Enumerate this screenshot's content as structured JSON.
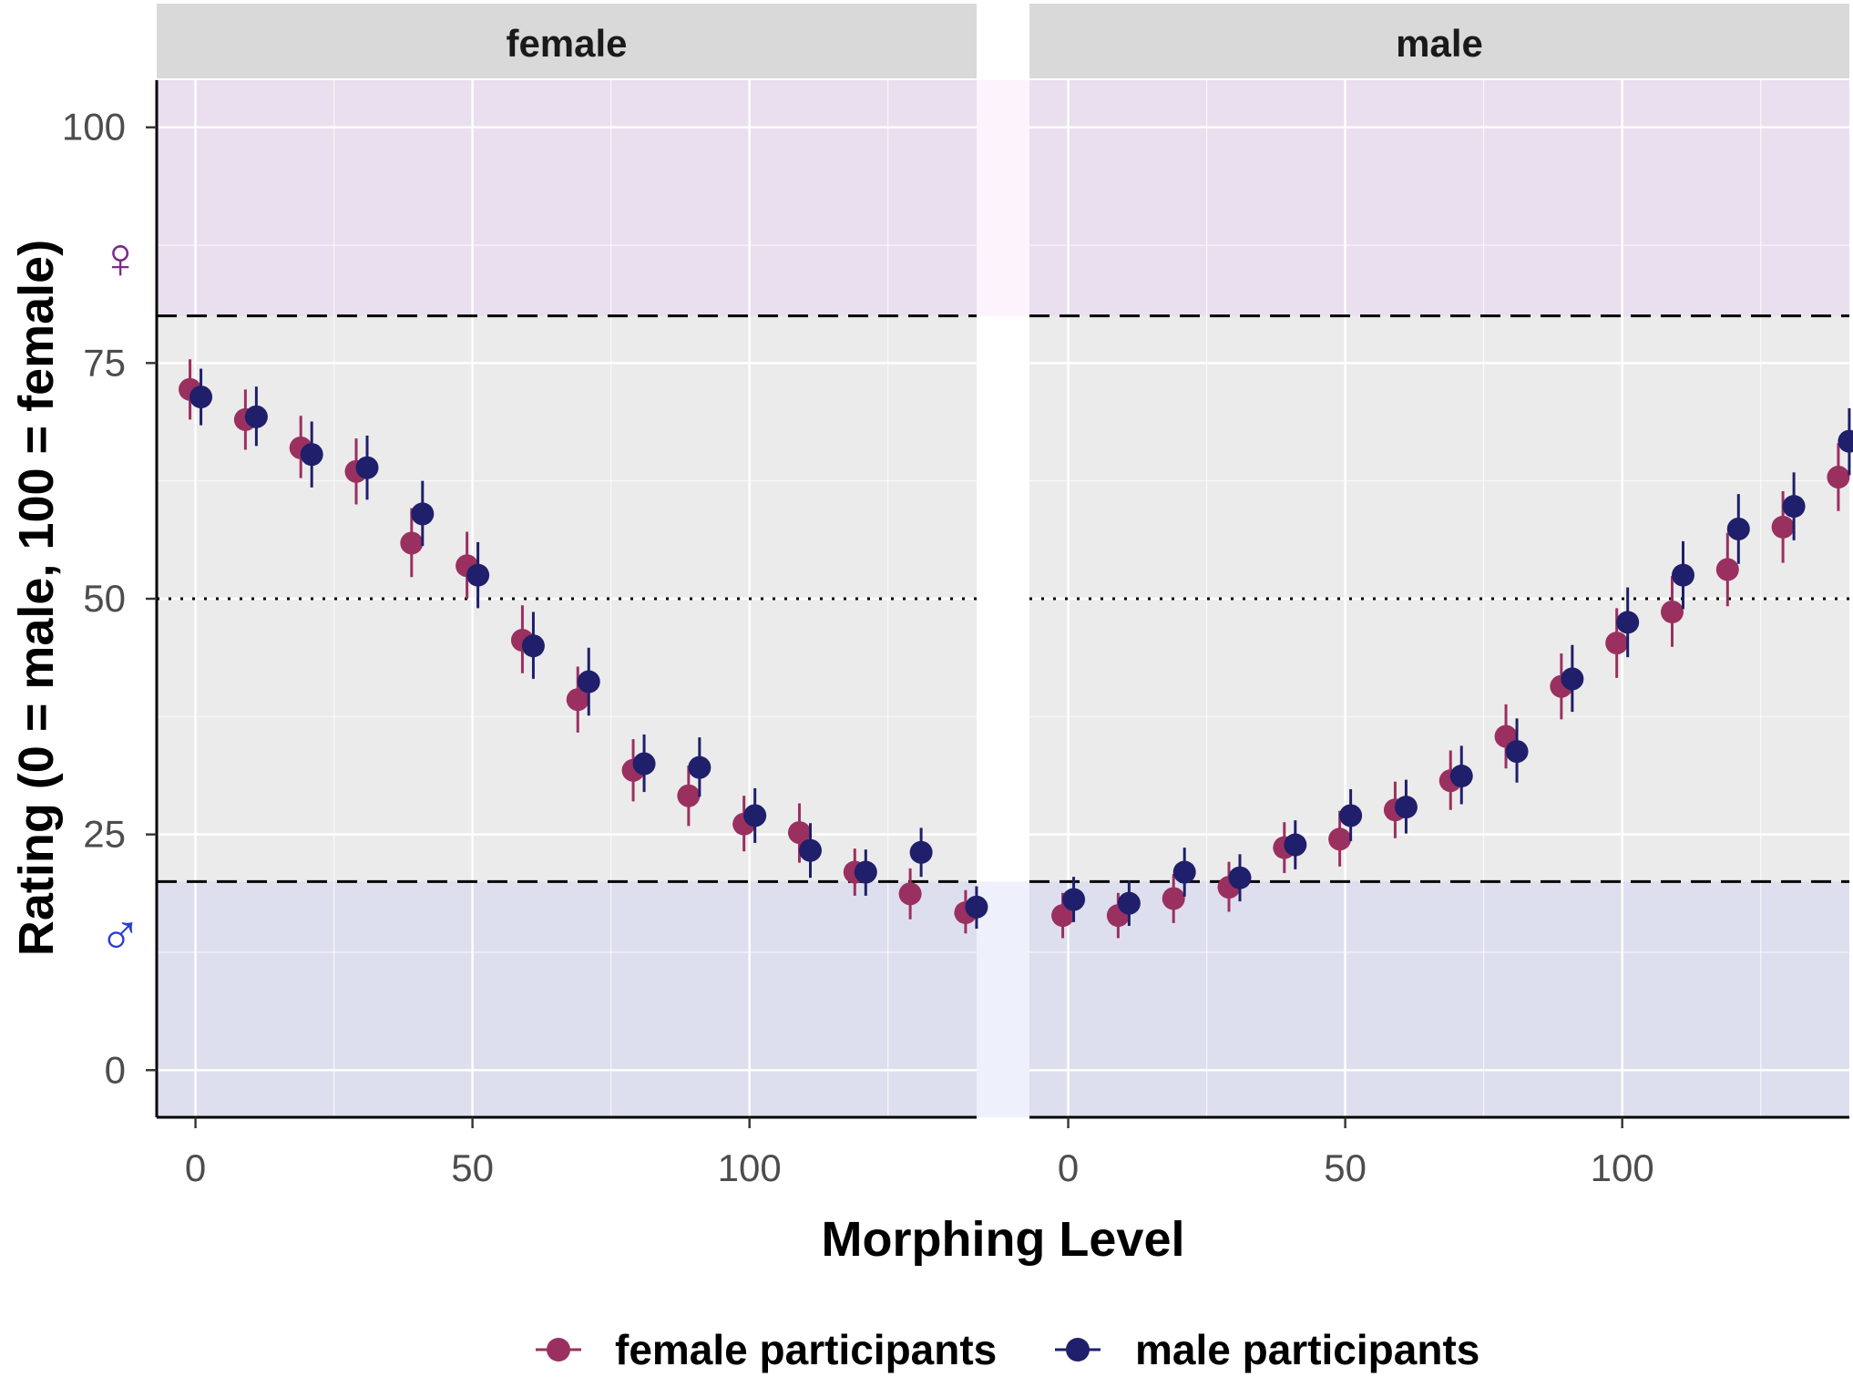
{
  "chart_data": {
    "type": "scatter",
    "facet_titles": [
      "female",
      "male"
    ],
    "xlabel": "Morphing Level",
    "ylabel": "Rating (0 = male, 100 = female)",
    "x_ticks": [
      0,
      50,
      100
    ],
    "y_ticks": [
      0,
      25,
      50,
      75,
      100
    ],
    "xlim": [
      -7,
      141
    ],
    "ylim": [
      -5,
      105
    ],
    "reference_lines": {
      "upper_dashed": 80,
      "lower_dashed": 20,
      "midline_dotted": 50
    },
    "zones": [
      {
        "name": "female",
        "symbol": "♀",
        "from": 80,
        "to": 105,
        "color": "#e9dfee",
        "symbol_color": "#7b2a8c"
      },
      {
        "name": "male",
        "symbol": "♂",
        "from": -5,
        "to": 20,
        "color": "#dddfee",
        "symbol_color": "#2a3ad6"
      }
    ],
    "legend": {
      "position": "bottom",
      "entries": [
        "female participants",
        "male participants"
      ]
    },
    "series": [
      {
        "name": "female participants",
        "color": "#9a3060",
        "panels": [
          {
            "x": [
              0,
              10,
              20,
              30,
              40,
              50,
              60,
              70,
              80,
              90,
              100,
              110,
              120,
              130,
              140
            ],
            "y": [
              72.2,
              69.0,
              66.0,
              63.5,
              55.9,
              53.5,
              45.6,
              39.3,
              31.8,
              29.1,
              26.1,
              25.2,
              21.0,
              18.7,
              16.7
            ],
            "lo": [
              69.0,
              65.8,
              62.8,
              60.0,
              52.3,
              50.0,
              42.1,
              35.8,
              28.5,
              25.9,
              23.2,
              22.0,
              18.5,
              16.0,
              14.5
            ],
            "hi": [
              75.4,
              72.2,
              69.4,
              67.0,
              59.6,
              57.1,
              49.3,
              42.8,
              35.1,
              32.3,
              29.1,
              28.3,
              23.5,
              21.4,
              19.1
            ]
          },
          {
            "x": [
              0,
              10,
              20,
              30,
              40,
              50,
              60,
              70,
              80,
              90,
              100,
              110,
              120,
              130,
              140
            ],
            "y": [
              16.4,
              16.4,
              18.2,
              19.4,
              23.6,
              24.5,
              27.6,
              30.7,
              35.4,
              40.7,
              45.3,
              48.6,
              53.1,
              57.6,
              62.9
            ],
            "lo": [
              14.0,
              14.0,
              15.6,
              16.8,
              20.9,
              21.6,
              24.6,
              27.6,
              32.0,
              37.2,
              41.6,
              44.9,
              49.2,
              53.8,
              59.3
            ],
            "hi": [
              18.8,
              18.8,
              20.8,
              22.1,
              26.3,
              27.5,
              30.6,
              33.9,
              38.8,
              44.2,
              49.0,
              52.4,
              57.0,
              61.4,
              66.5
            ]
          }
        ]
      },
      {
        "name": "male participants",
        "color": "#1f1f6b",
        "panels": [
          {
            "x": [
              0,
              10,
              20,
              30,
              40,
              50,
              60,
              70,
              80,
              90,
              100,
              110,
              120,
              130,
              140
            ],
            "y": [
              71.4,
              69.3,
              65.3,
              63.9,
              59.0,
              52.5,
              45.0,
              41.2,
              32.5,
              32.1,
              27.0,
              23.3,
              21.0,
              23.1,
              17.3
            ],
            "lo": [
              68.4,
              66.2,
              61.8,
              60.5,
              55.6,
              49.0,
              41.5,
              37.6,
              29.5,
              29.0,
              24.1,
              20.4,
              18.5,
              20.5,
              15.0
            ],
            "hi": [
              74.4,
              72.5,
              68.8,
              67.3,
              62.5,
              56.0,
              48.6,
              44.8,
              35.6,
              35.3,
              29.9,
              26.2,
              23.4,
              25.7,
              19.5
            ]
          },
          {
            "x": [
              0,
              10,
              20,
              30,
              40,
              50,
              60,
              70,
              80,
              90,
              100,
              110,
              120,
              130,
              140
            ],
            "y": [
              18.1,
              17.7,
              21.0,
              20.4,
              23.9,
              27.0,
              27.9,
              31.2,
              33.8,
              41.5,
              47.5,
              52.5,
              57.4,
              59.8,
              66.7
            ],
            "lo": [
              15.7,
              15.3,
              18.4,
              17.9,
              21.3,
              24.3,
              25.1,
              28.2,
              30.5,
              38.0,
              43.8,
              48.9,
              53.7,
              56.2,
              63.1
            ],
            "hi": [
              20.5,
              20.1,
              23.6,
              22.9,
              26.5,
              29.8,
              30.8,
              34.4,
              37.3,
              45.1,
              51.2,
              56.1,
              61.1,
              63.4,
              70.2
            ]
          }
        ]
      }
    ]
  }
}
